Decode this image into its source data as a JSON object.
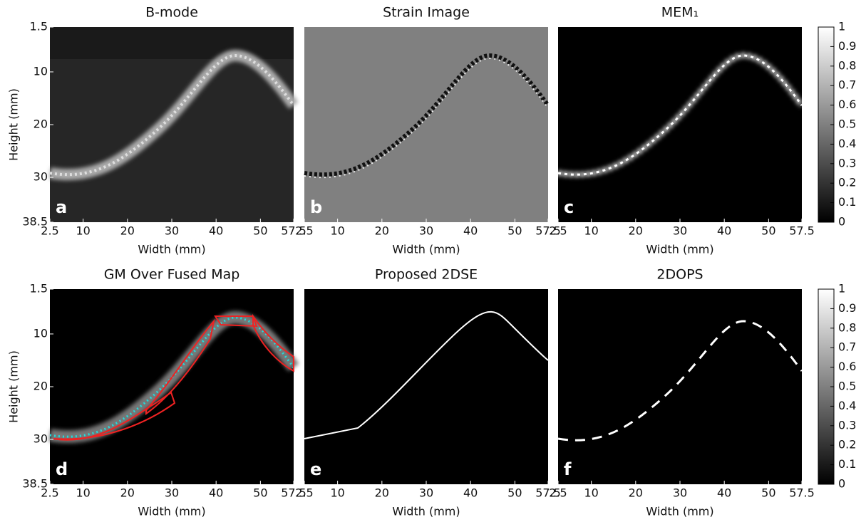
{
  "panels": [
    {
      "title": "B-mode",
      "letter": "a",
      "x_label": "Width (mm)",
      "y_label": "Height (mm)",
      "xticks": [
        2.5,
        10,
        20,
        30,
        40,
        50,
        57.5
      ],
      "yticks": [
        1.5,
        10,
        20,
        30,
        38.5
      ]
    },
    {
      "title": "Strain Image",
      "letter": "b",
      "x_label": "Width (mm)",
      "xticks": [
        2.5,
        10,
        20,
        30,
        40,
        50,
        57.5
      ]
    },
    {
      "title": "MEM₁",
      "letter": "c",
      "x_label": "Width (mm)",
      "xticks": [
        2.5,
        10,
        20,
        30,
        40,
        50,
        57.5
      ]
    },
    {
      "title": "GM Over Fused Map",
      "letter": "d",
      "x_label": "Width (mm)",
      "y_label": "Height (mm)",
      "xticks": [
        2.5,
        10,
        20,
        30,
        40,
        50,
        57.5
      ],
      "yticks": [
        1.5,
        10,
        20,
        30,
        38.5
      ]
    },
    {
      "title": "Proposed 2DSE",
      "letter": "e",
      "x_label": "Width (mm)",
      "xticks": [
        2.5,
        10,
        20,
        30,
        40,
        50,
        57.5
      ]
    },
    {
      "title": "2DOPS",
      "letter": "f",
      "x_label": "Width (mm)",
      "xticks": [
        2.5,
        10,
        20,
        30,
        40,
        50,
        57.5
      ]
    }
  ],
  "colorbars": [
    {
      "ticks": [
        0,
        0.1,
        0.2,
        0.3,
        0.4,
        0.5,
        0.6,
        0.7,
        0.8,
        0.9,
        1
      ]
    },
    {
      "ticks": [
        0,
        0.1,
        0.2,
        0.3,
        0.4,
        0.5,
        0.6,
        0.7,
        0.8,
        0.9,
        1
      ]
    }
  ]
}
